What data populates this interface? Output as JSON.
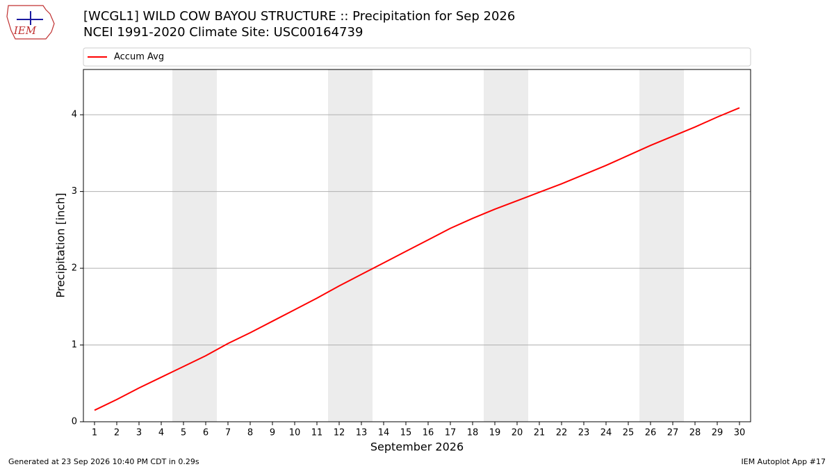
{
  "logo_text": "IEM",
  "chart_data": {
    "type": "line",
    "title": "[WCGL1] WILD COW BAYOU STRUCTURE :: Precipitation for Sep 2026",
    "subtitle": "NCEI 1991-2020 Climate Site: USC00164739",
    "x_label": "September 2026",
    "y_label": "Precipitation [inch]",
    "x": [
      1,
      2,
      3,
      4,
      5,
      6,
      7,
      8,
      9,
      10,
      11,
      12,
      13,
      14,
      15,
      16,
      17,
      18,
      19,
      20,
      21,
      22,
      23,
      24,
      25,
      26,
      27,
      28,
      29,
      30
    ],
    "series": [
      {
        "name": "Accum Avg",
        "color": "#ff0000",
        "values": [
          0.15,
          0.29,
          0.44,
          0.58,
          0.72,
          0.86,
          1.02,
          1.16,
          1.31,
          1.46,
          1.61,
          1.77,
          1.92,
          2.07,
          2.22,
          2.37,
          2.52,
          2.65,
          2.77,
          2.88,
          2.99,
          3.1,
          3.22,
          3.34,
          3.47,
          3.6,
          3.72,
          3.84,
          3.97,
          4.09
        ]
      }
    ],
    "shaded_days": [
      [
        5,
        6
      ],
      [
        12,
        13
      ],
      [
        19,
        20
      ],
      [
        26,
        27
      ]
    ],
    "shade_color": "#ececec",
    "xlim": [
      0.5,
      30.5
    ],
    "xticks": [
      1,
      2,
      3,
      4,
      5,
      6,
      7,
      8,
      9,
      10,
      11,
      12,
      13,
      14,
      15,
      16,
      17,
      18,
      19,
      20,
      21,
      22,
      23,
      24,
      25,
      26,
      27,
      28,
      29,
      30
    ],
    "ylim": [
      0,
      4.59
    ],
    "yticks": [
      0,
      1,
      2,
      3,
      4
    ],
    "grid": true,
    "legend": "top"
  },
  "footer": {
    "left": "Generated at 23 Sep 2026 10:40 PM CDT in 0.29s",
    "right": "IEM Autoplot App #17"
  }
}
